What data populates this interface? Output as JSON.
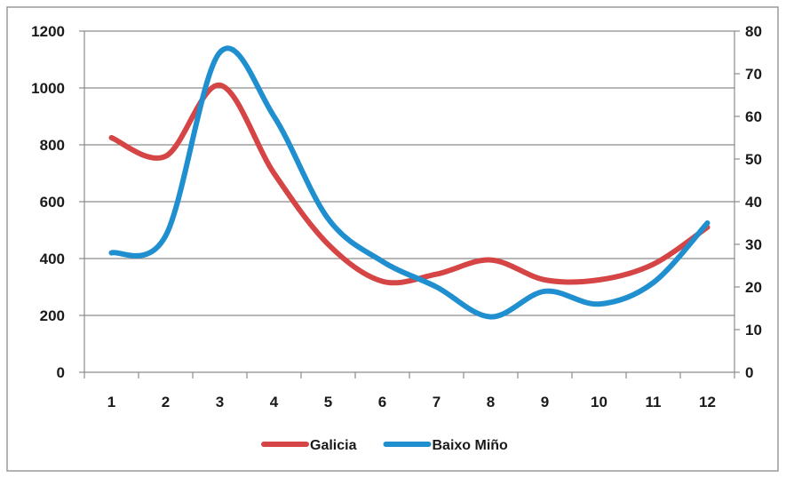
{
  "chart_data": {
    "type": "line",
    "title": "",
    "xlabel": "",
    "ylabel": "",
    "categories": [
      "1",
      "2",
      "3",
      "4",
      "5",
      "6",
      "7",
      "8",
      "9",
      "10",
      "11",
      "12"
    ],
    "y_left": {
      "min": 0,
      "max": 1200,
      "ticks": [
        "0",
        "200",
        "400",
        "600",
        "800",
        "1000",
        "1200"
      ]
    },
    "y_right": {
      "min": 0,
      "max": 80,
      "ticks": [
        "0",
        "10",
        "20",
        "30",
        "40",
        "50",
        "60",
        "70",
        "80"
      ]
    },
    "grid": true,
    "legend_position": "bottom",
    "series": [
      {
        "name": "Galicia",
        "axis": "left",
        "color": "#d64545",
        "values": [
          825,
          760,
          1010,
          700,
          450,
          320,
          345,
          395,
          325,
          325,
          380,
          510
        ]
      },
      {
        "name": "Baixo Miño",
        "axis": "right",
        "color": "#1f8fd0",
        "values": [
          28,
          32,
          75,
          60,
          36,
          26,
          20,
          13,
          19,
          16,
          21,
          35
        ]
      }
    ]
  }
}
